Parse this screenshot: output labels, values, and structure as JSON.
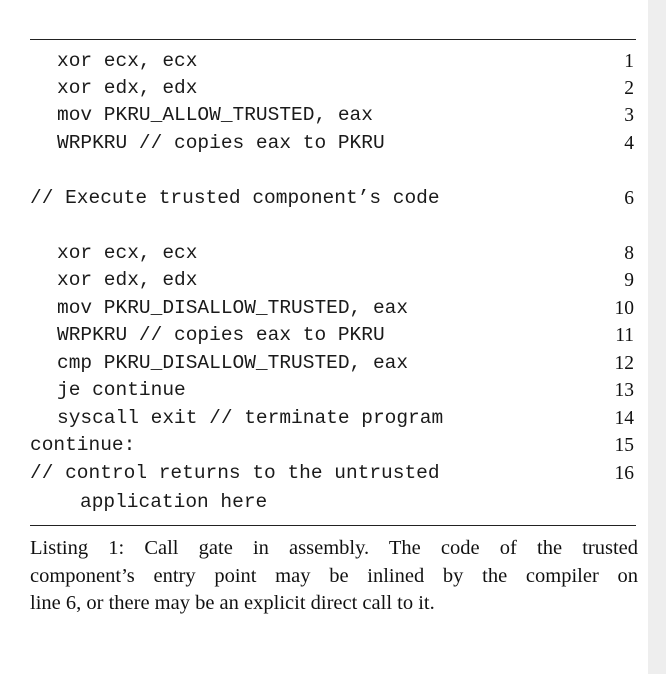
{
  "listing": {
    "lines": [
      {
        "code": "xor ecx, ecx",
        "number": "1"
      },
      {
        "code": "xor edx, edx",
        "number": "2"
      },
      {
        "code": "mov PKRU_ALLOW_TRUSTED, eax",
        "number": "3"
      },
      {
        "code": "WRPKRU // copies eax to PKRU",
        "number": "4"
      },
      {
        "code": "// Execute trusted component’s code",
        "number": "6"
      },
      {
        "code": "xor ecx, ecx",
        "number": "8"
      },
      {
        "code": "xor edx, edx",
        "number": "9"
      },
      {
        "code": "mov PKRU_DISALLOW_TRUSTED, eax",
        "number": "10"
      },
      {
        "code": "WRPKRU // copies eax to PKRU",
        "number": "11"
      },
      {
        "code": "cmp PKRU_DISALLOW_TRUSTED, eax",
        "number": "12"
      },
      {
        "code": "je continue",
        "number": "13"
      },
      {
        "code": "syscall exit // terminate program",
        "number": "14"
      },
      {
        "code": "continue:",
        "number": "15"
      },
      {
        "code": "// control returns to the untrusted",
        "number": "16"
      },
      {
        "code": "application here",
        "number": ""
      }
    ]
  },
  "caption": {
    "line1": "Listing 1: Call gate in assembly. The code of the trusted",
    "line2": "component’s entry point may be inlined by the compiler on",
    "line3": "line 6, or there may be an explicit direct call to it."
  }
}
